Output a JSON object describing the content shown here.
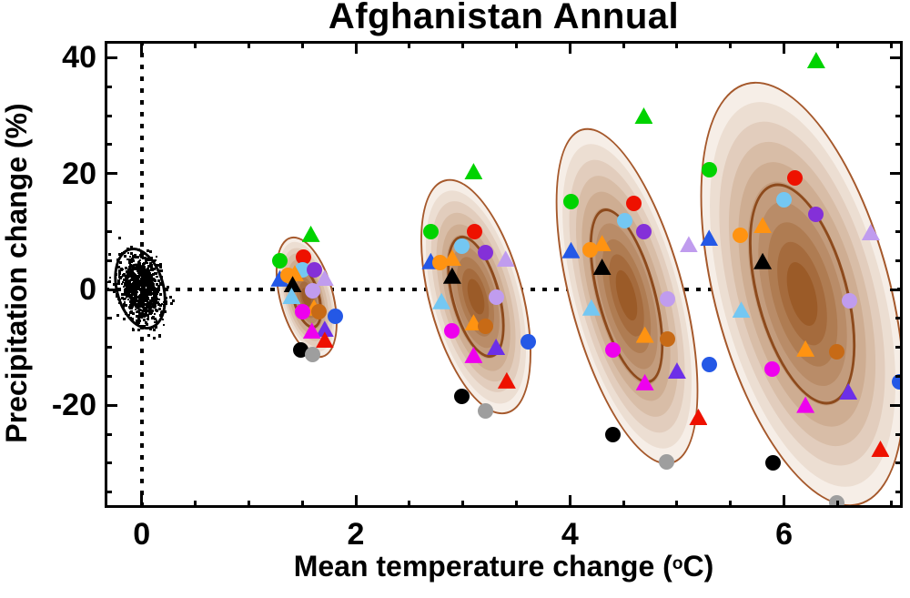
{
  "title": "Afghanistan Annual",
  "axes": {
    "xlabel": "Mean temperature change (°C)",
    "xlabel_prefix": "Mean temperature change (",
    "xlabel_degree": "o",
    "xlabel_suffix": "C)",
    "ylabel": "Precipitation change (%)",
    "x_ticks": [
      {
        "label": "0",
        "value": 0
      },
      {
        "label": "2",
        "value": 2
      },
      {
        "label": "4",
        "value": 4
      },
      {
        "label": "6",
        "value": 6
      }
    ],
    "y_ticks": [
      {
        "label": "40",
        "value": 40
      },
      {
        "label": "20",
        "value": 20
      },
      {
        "label": "0",
        "value": 0
      },
      {
        "label": "-20",
        "value": -20
      }
    ],
    "x_minor_step": 0.5,
    "y_minor_step": 5
  },
  "chart_data": {
    "type": "scatter",
    "title": "Afghanistan Annual",
    "xlabel": "Mean temperature change (°C)",
    "ylabel": "Precipitation change (%)",
    "xlim": [
      -0.35,
      7.1
    ],
    "ylim": [
      -37.7,
      43
    ],
    "grid": false,
    "zero_reference_lines": "dotted black at x=0 and y=0",
    "shading": {
      "levels": 10,
      "light": "#f6eee7",
      "dark": "#9b5b28",
      "outline": "#a5582b",
      "inner_outline": "#8d4a1c",
      "inner_scale": 0.52
    },
    "models": [
      {
        "name": "green-triangle",
        "shape": "triangle",
        "color": "#00d300"
      },
      {
        "name": "green-circle",
        "shape": "circle",
        "color": "#00d300"
      },
      {
        "name": "red-circle",
        "shape": "circle",
        "color": "#ee1100"
      },
      {
        "name": "skyblue-circle",
        "shape": "circle",
        "color": "#74c7f2"
      },
      {
        "name": "darkviolet-circle",
        "shape": "circle",
        "color": "#8430d8"
      },
      {
        "name": "lightpurple-triangle",
        "shape": "triangle",
        "color": "#c09cee"
      },
      {
        "name": "blue-triangle",
        "shape": "triangle",
        "color": "#2458e6"
      },
      {
        "name": "orange-circle",
        "shape": "circle",
        "color": "#ff9311"
      },
      {
        "name": "orange-triangle-a",
        "shape": "triangle",
        "color": "#ff9311"
      },
      {
        "name": "black-triangle",
        "shape": "triangle",
        "color": "#000000"
      },
      {
        "name": "skyblue-triangle",
        "shape": "triangle",
        "color": "#74c7f2"
      },
      {
        "name": "lightpurple-circle",
        "shape": "circle",
        "color": "#c09cee"
      },
      {
        "name": "orange-triangle-b",
        "shape": "triangle",
        "color": "#ff9311"
      },
      {
        "name": "brown-circle",
        "shape": "circle",
        "color": "#c76a16"
      },
      {
        "name": "magenta-circle",
        "shape": "circle",
        "color": "#ee00ee"
      },
      {
        "name": "blue-circle",
        "shape": "circle",
        "color": "#2458e6"
      },
      {
        "name": "purple-triangle",
        "shape": "triangle",
        "color": "#6c2fe8"
      },
      {
        "name": "magenta-triangle",
        "shape": "triangle",
        "color": "#ee00ee"
      },
      {
        "name": "red-triangle",
        "shape": "triangle",
        "color": "#ee1100"
      },
      {
        "name": "black-circle",
        "shape": "circle",
        "color": "#000000"
      },
      {
        "name": "gray-circle",
        "shape": "circle",
        "color": "#9e9e9e"
      }
    ],
    "baseline_cluster": {
      "center": [
        -0.01,
        0.2
      ],
      "outer_radii": [
        0.23,
        7.2
      ],
      "inner_radii": [
        0.13,
        4.3
      ],
      "rotation_deg": -15,
      "n_points": 760,
      "sigma": [
        0.098,
        3.1
      ],
      "color": "#000000"
    },
    "scenarios": [
      {
        "ellipse": {
          "center": [
            1.54,
            -1.3
          ],
          "rt": 0.255,
          "rp": 10.8,
          "rotation_deg": -15
        },
        "points": [
          [
            1.58,
            9.6
          ],
          [
            1.29,
            4.9
          ],
          [
            1.51,
            5.5
          ],
          [
            1.5,
            3.3
          ],
          [
            1.61,
            3.3
          ],
          [
            1.71,
            2.0
          ],
          [
            1.29,
            1.9
          ],
          [
            1.37,
            2.4
          ],
          [
            1.43,
            2.8
          ],
          [
            1.41,
            0.9
          ],
          [
            1.4,
            -1.1
          ],
          [
            1.6,
            -0.3
          ],
          [
            1.61,
            -3.1
          ],
          [
            1.66,
            -3.9
          ],
          [
            1.5,
            -3.8
          ],
          [
            1.81,
            -4.6
          ],
          [
            1.71,
            -6.8
          ],
          [
            1.59,
            -7.1
          ],
          [
            1.71,
            -8.7
          ],
          [
            1.49,
            -10.4
          ],
          [
            1.6,
            -11.3
          ]
        ]
      },
      {
        "ellipse": {
          "center": [
            3.12,
            -1.3
          ],
          "rt": 0.44,
          "rp": 20.9,
          "rotation_deg": -15
        },
        "points": [
          [
            3.1,
            20.4
          ],
          [
            2.7,
            9.9
          ],
          [
            3.11,
            9.9
          ],
          [
            2.99,
            7.5
          ],
          [
            3.21,
            6.4
          ],
          [
            3.4,
            5.3
          ],
          [
            2.7,
            4.9
          ],
          [
            2.79,
            4.7
          ],
          [
            2.9,
            5.5
          ],
          [
            2.9,
            2.4
          ],
          [
            2.8,
            -2.0
          ],
          [
            3.31,
            -1.3
          ],
          [
            3.1,
            -5.7
          ],
          [
            3.21,
            -6.3
          ],
          [
            2.9,
            -7.1
          ],
          [
            3.61,
            -9.1
          ],
          [
            3.31,
            -9.9
          ],
          [
            3.1,
            -11.3
          ],
          [
            3.41,
            -15.7
          ],
          [
            2.99,
            -18.5
          ],
          [
            3.21,
            -21.0
          ]
        ]
      },
      {
        "ellipse": {
          "center": [
            4.53,
            -1.1
          ],
          "rt": 0.535,
          "rp": 29.9,
          "rotation_deg": -15
        },
        "points": [
          [
            4.69,
            30.0
          ],
          [
            4.01,
            15.1
          ],
          [
            4.6,
            14.8
          ],
          [
            4.51,
            11.8
          ],
          [
            4.69,
            9.9
          ],
          [
            5.11,
            7.8
          ],
          [
            4.01,
            6.8
          ],
          [
            4.19,
            6.9
          ],
          [
            4.3,
            8.0
          ],
          [
            4.3,
            3.9
          ],
          [
            4.2,
            -3.1
          ],
          [
            4.91,
            -1.6
          ],
          [
            4.7,
            -7.8
          ],
          [
            4.91,
            -8.6
          ],
          [
            4.4,
            -10.4
          ],
          [
            5.3,
            -12.9
          ],
          [
            5.0,
            -14.0
          ],
          [
            4.7,
            -16.0
          ],
          [
            5.2,
            -22.0
          ],
          [
            4.4,
            -25.1
          ],
          [
            4.9,
            -29.7
          ]
        ]
      },
      {
        "ellipse": {
          "center": [
            6.17,
            -0.8
          ],
          "rt": 0.825,
          "rp": 37.7,
          "rotation_deg": -15
        },
        "points": [
          [
            6.3,
            39.6
          ],
          [
            5.3,
            20.6
          ],
          [
            6.1,
            19.3
          ],
          [
            6.0,
            15.4
          ],
          [
            6.3,
            12.9
          ],
          [
            6.81,
            9.9
          ],
          [
            5.3,
            8.9
          ],
          [
            5.59,
            9.4
          ],
          [
            5.8,
            11.1
          ],
          [
            5.8,
            4.9
          ],
          [
            5.6,
            -3.5
          ],
          [
            6.61,
            -2.0
          ],
          [
            6.2,
            -10.2
          ],
          [
            6.49,
            -10.7
          ],
          [
            5.89,
            -13.7
          ],
          [
            7.08,
            -15.9
          ],
          [
            6.6,
            -17.6
          ],
          [
            6.2,
            -19.9
          ],
          [
            6.9,
            -27.5
          ],
          [
            5.9,
            -30.0
          ],
          [
            6.49,
            -36.9
          ]
        ]
      }
    ]
  }
}
